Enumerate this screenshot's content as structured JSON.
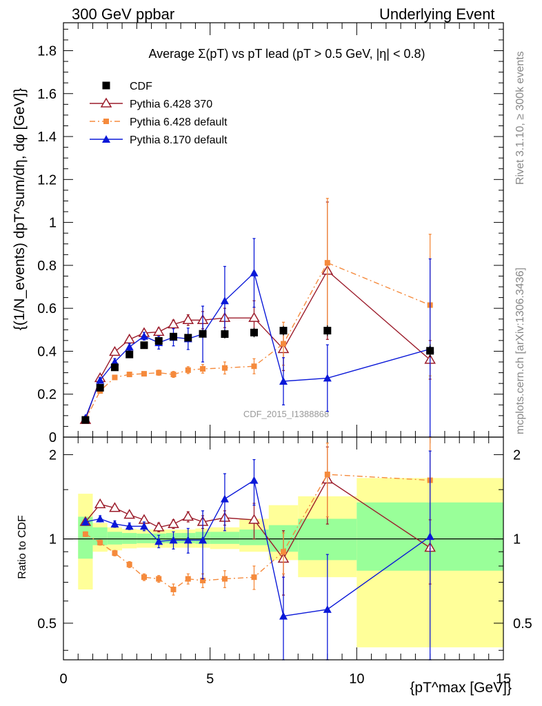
{
  "header": {
    "left": "300 GeV ppbar",
    "right": "Underlying Event"
  },
  "side_labels": {
    "rivet": "Rivet 3.1.10, ≥ 300k events",
    "mcplots": "mcplots.cern.ch [arXiv:1306.3436]"
  },
  "colors": {
    "data": "#000000",
    "pythia6_370": "#9b1b2a",
    "pythia6_default": "#f58a3c",
    "pythia8": "#0a18d8",
    "band_inner": "#99ff99",
    "band_outer": "#ffff99"
  },
  "chart_data": [
    {
      "type": "scatter",
      "title": "Average Σ(pT) vs pT lead (pT > 0.5 GeV, |η| < 0.8)",
      "ylabel": "{(1/N_events) dpT^sum/dη, dφ [GeV]}",
      "xlim": [
        0,
        15
      ],
      "ylim": [
        0,
        1.93
      ],
      "yticks": [
        "0",
        "0.2",
        "0.4",
        "0.6",
        "0.8",
        "1",
        "1.2",
        "1.4",
        "1.6",
        "1.8"
      ],
      "watermark": "CDF_2015_I1388868",
      "legend_position": "top-left",
      "series": [
        {
          "name": "CDF",
          "key": "data",
          "marker": "filled-square",
          "x": [
            0.75,
            1.25,
            1.75,
            2.25,
            2.75,
            3.25,
            3.75,
            4.25,
            4.75,
            5.5,
            6.5,
            7.5,
            9.0,
            12.5
          ],
          "y": [
            0.08,
            0.23,
            0.325,
            0.385,
            0.428,
            0.448,
            0.468,
            0.463,
            0.481,
            0.48,
            0.487,
            0.496,
            0.496,
            0.402
          ],
          "yerr": [
            0.005,
            0.01,
            0.012,
            0.014,
            0.015,
            0.016,
            0.016,
            0.016,
            0.018,
            0.02,
            0.022,
            0.022,
            0.025,
            0.03
          ]
        },
        {
          "name": "Pythia 6.428 370",
          "key": "pythia6_370",
          "marker": "open-triangle",
          "line": "solid",
          "x": [
            0.75,
            1.25,
            1.75,
            2.25,
            2.75,
            3.25,
            3.75,
            4.25,
            4.75,
            5.5,
            6.5,
            7.5,
            9.0,
            12.5
          ],
          "y": [
            0.08,
            0.275,
            0.397,
            0.455,
            0.485,
            0.49,
            0.525,
            0.545,
            0.545,
            0.555,
            0.555,
            0.41,
            0.775,
            0.36
          ],
          "yerr": [
            0.003,
            0.01,
            0.012,
            0.014,
            0.016,
            0.018,
            0.02,
            0.025,
            0.04,
            0.045,
            0.08,
            0.1,
            0.32,
            0.09
          ]
        },
        {
          "name": "Pythia 6.428 default",
          "key": "pythia6_default",
          "marker": "filled-small-square",
          "line": "dash-dot",
          "x": [
            0.75,
            1.25,
            1.75,
            2.25,
            2.75,
            3.25,
            3.75,
            4.25,
            4.75,
            5.5,
            6.5,
            7.5,
            9.0,
            12.5
          ],
          "y": [
            0.08,
            0.215,
            0.278,
            0.292,
            0.295,
            0.3,
            0.292,
            0.312,
            0.318,
            0.322,
            0.33,
            0.435,
            0.812,
            0.615
          ],
          "yerr": [
            0.003,
            0.006,
            0.008,
            0.01,
            0.01,
            0.012,
            0.014,
            0.016,
            0.02,
            0.028,
            0.035,
            0.1,
            0.3,
            0.33
          ]
        },
        {
          "name": "Pythia 8.170 default",
          "key": "pythia8",
          "marker": "filled-triangle",
          "line": "solid",
          "x": [
            0.75,
            1.25,
            1.75,
            2.25,
            2.75,
            3.25,
            3.75,
            4.25,
            4.75,
            5.5,
            6.5,
            7.5,
            9.0,
            12.5
          ],
          "y": [
            0.09,
            0.265,
            0.35,
            0.42,
            0.47,
            0.44,
            0.465,
            0.458,
            0.48,
            0.635,
            0.765,
            0.26,
            0.275,
            0.41
          ],
          "yerr": [
            0.004,
            0.012,
            0.016,
            0.016,
            0.018,
            0.03,
            0.04,
            0.05,
            0.13,
            0.16,
            0.16,
            0.11,
            0.155,
            0.42
          ]
        }
      ]
    },
    {
      "type": "scatter",
      "ylabel": "Ratio to CDF",
      "xlabel": "{pT^max [GeV]}",
      "xlim": [
        0,
        15
      ],
      "ylim": [
        0.37,
        2.31
      ],
      "yscale": "log",
      "xticks": [
        "0",
        "5",
        "10",
        "15"
      ],
      "yticks": [
        "0.5",
        "1",
        "2"
      ],
      "bands": {
        "x_edges": [
          0.5,
          1.0,
          1.5,
          2.0,
          2.5,
          3.0,
          3.5,
          4.0,
          4.5,
          5.0,
          6.0,
          7.0,
          8.0,
          10.0,
          15.0
        ],
        "inner_lo": [
          0.85,
          0.95,
          0.955,
          0.96,
          0.965,
          0.965,
          0.965,
          0.965,
          0.96,
          0.96,
          0.95,
          0.9,
          0.84,
          0.77
        ],
        "inner_hi": [
          1.2,
          1.1,
          1.06,
          1.05,
          1.045,
          1.045,
          1.05,
          1.05,
          1.06,
          1.06,
          1.08,
          1.12,
          1.18,
          1.35
        ],
        "outer_lo": [
          0.66,
          0.9,
          0.91,
          0.925,
          0.93,
          0.93,
          0.93,
          0.93,
          0.93,
          0.92,
          0.9,
          0.84,
          0.73,
          0.41
        ],
        "outer_hi": [
          1.45,
          1.14,
          1.1,
          1.085,
          1.08,
          1.08,
          1.08,
          1.08,
          1.09,
          1.1,
          1.18,
          1.32,
          1.42,
          1.65
        ]
      },
      "series": [
        {
          "name": "Pythia 6.428 370",
          "key": "pythia6_370",
          "marker": "open-triangle",
          "line": "solid",
          "x": [
            0.75,
            1.25,
            1.75,
            2.25,
            2.75,
            3.25,
            3.75,
            4.25,
            4.75,
            5.5,
            6.5,
            7.5,
            9.0,
            12.5
          ],
          "y": [
            1.15,
            1.33,
            1.29,
            1.22,
            1.17,
            1.1,
            1.13,
            1.2,
            1.15,
            1.19,
            1.17,
            0.85,
            1.63,
            0.93
          ],
          "yerr": [
            0.02,
            0.03,
            0.03,
            0.03,
            0.03,
            0.04,
            0.04,
            0.05,
            0.06,
            0.07,
            0.17,
            0.22,
            0.5,
            0.24
          ]
        },
        {
          "name": "Pythia 6.428 default",
          "key": "pythia6_default",
          "marker": "filled-small-square",
          "line": "dash-dot",
          "x": [
            0.75,
            1.25,
            1.75,
            2.25,
            2.75,
            3.25,
            3.75,
            4.25,
            4.75,
            5.5,
            6.5,
            7.5,
            9.0,
            12.5
          ],
          "y": [
            1.04,
            0.97,
            0.89,
            0.81,
            0.73,
            0.72,
            0.66,
            0.72,
            0.71,
            0.72,
            0.73,
            0.9,
            1.7,
            1.62
          ],
          "yerr": [
            0.02,
            0.02,
            0.02,
            0.02,
            0.02,
            0.02,
            0.03,
            0.03,
            0.04,
            0.05,
            0.07,
            0.15,
            0.5,
            0.7
          ]
        },
        {
          "name": "Pythia 8.170 default",
          "key": "pythia8",
          "marker": "filled-triangle",
          "line": "solid",
          "x": [
            0.75,
            1.25,
            1.75,
            2.25,
            2.75,
            3.25,
            3.75,
            4.25,
            4.75,
            5.5,
            6.5,
            7.5,
            9.0,
            12.5
          ],
          "y": [
            1.15,
            1.18,
            1.13,
            1.11,
            1.11,
            0.98,
            0.99,
            0.99,
            0.99,
            1.39,
            1.62,
            0.53,
            0.56,
            1.02
          ],
          "yerr": [
            0.03,
            0.03,
            0.03,
            0.03,
            0.04,
            0.05,
            0.07,
            0.1,
            0.27,
            0.32,
            0.3,
            0.2,
            0.32,
            1.04
          ]
        }
      ]
    }
  ]
}
